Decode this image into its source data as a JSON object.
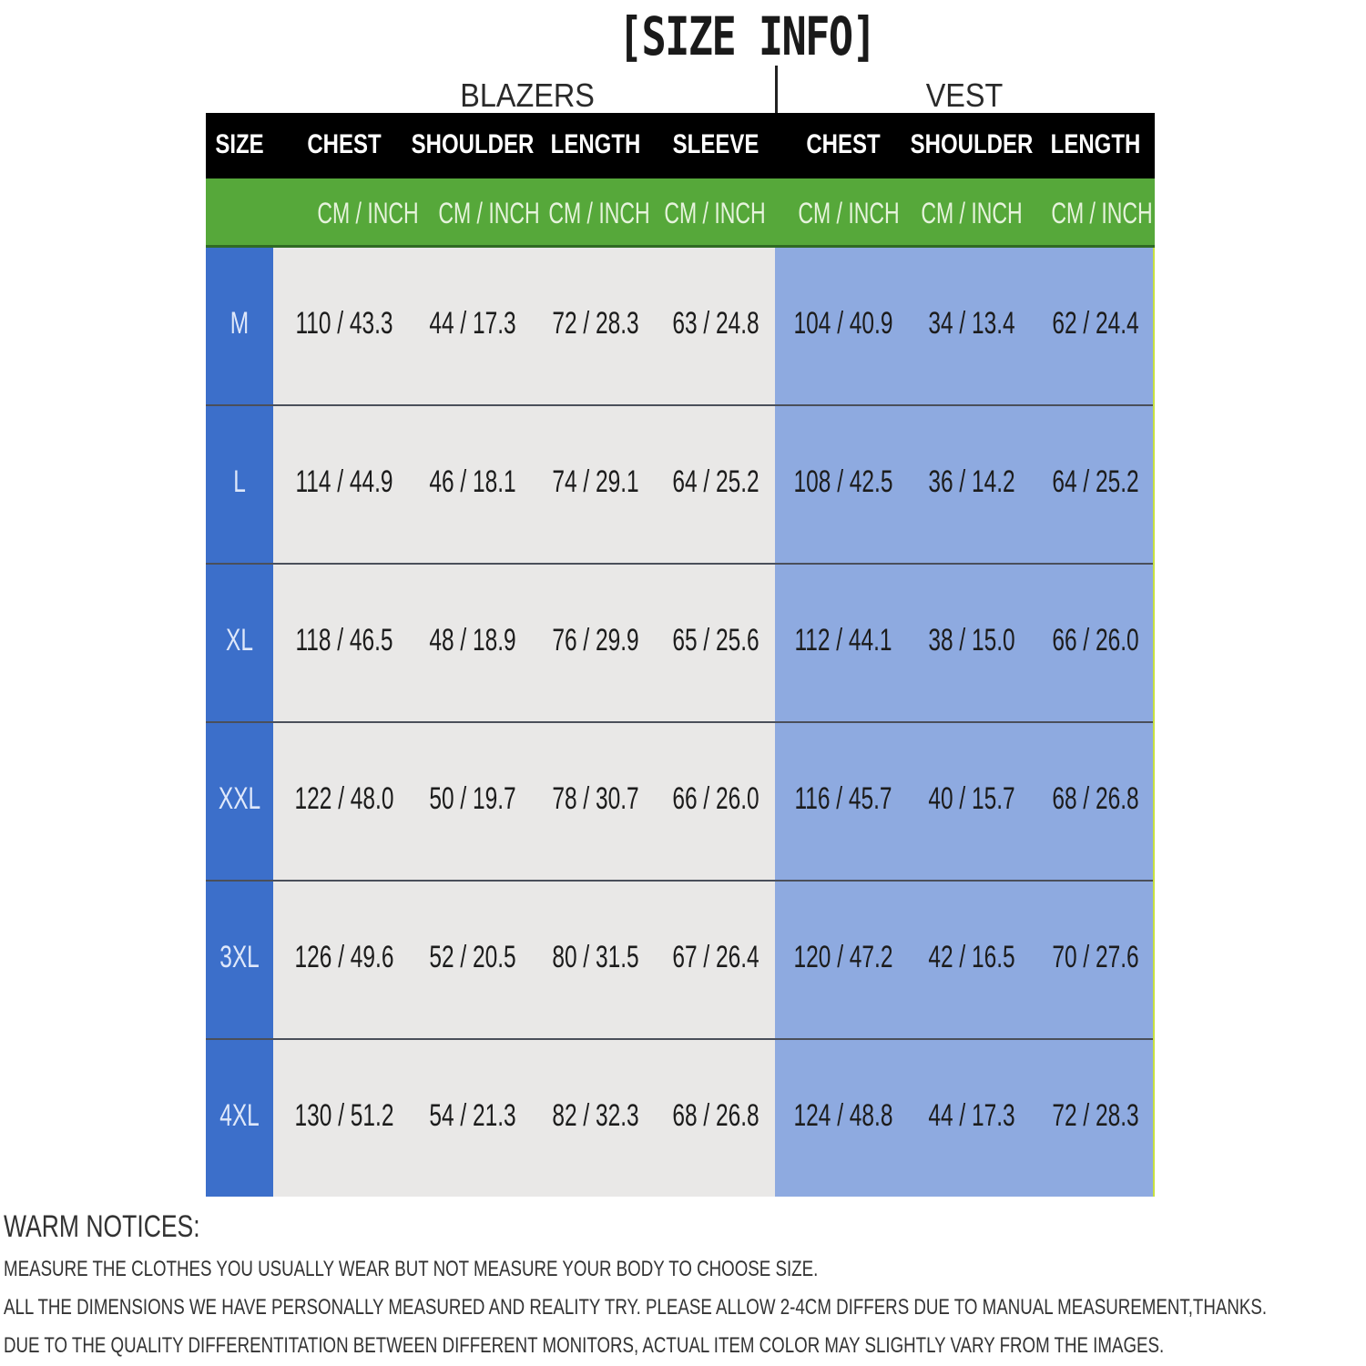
{
  "title": "[SIZE INFO]",
  "groups": {
    "blazers": "BLAZERS",
    "vest": "VEST"
  },
  "headers": [
    "SIZE",
    "CHEST",
    "SHOULDER",
    "LENGTH",
    "SLEEVE",
    "CHEST",
    "SHOULDER",
    "LENGTH"
  ],
  "units": [
    "CM  /  INCH",
    "CM  /  INCH",
    "CM / INCH",
    "CM  /  INCH",
    "CM  /  INCH",
    "CM  /  INCH",
    "CM  /  INCH"
  ],
  "rows": [
    {
      "size": "M",
      "values": [
        "110  /  43.3",
        "44  /  17.3",
        "72 / 28.3",
        "63  /  24.8",
        "104  /  40.9",
        "34  /  13.4",
        "62  /  24.4"
      ]
    },
    {
      "size": "L",
      "values": [
        "114  /  44.9",
        "46  /  18.1",
        "74 / 29.1",
        "64  /  25.2",
        "108  /  42.5",
        "36  /  14.2",
        "64  /  25.2"
      ]
    },
    {
      "size": "XL",
      "values": [
        "118  /  46.5",
        "48  /  18.9",
        "76 / 29.9",
        "65  /  25.6",
        "112  /  44.1",
        "38  /  15.0",
        "66  /  26.0"
      ]
    },
    {
      "size": "XXL",
      "values": [
        "122  /  48.0",
        "50  /  19.7",
        "78 / 30.7",
        "66  /  26.0",
        "116  /  45.7",
        "40  /  15.7",
        "68  /  26.8"
      ]
    },
    {
      "size": "3XL",
      "values": [
        "126  /  49.6",
        "52  /  20.5",
        "80 / 31.5",
        "67  /  26.4",
        "120  /  47.2",
        "42  /  16.5",
        "70  /  27.6"
      ]
    },
    {
      "size": "4XL",
      "values": [
        "130  /  51.2",
        "54  /  21.3",
        "82 / 32.3",
        "68  /  26.8",
        "124  /  48.8",
        "44  /  17.3",
        "72  /  28.3"
      ]
    }
  ],
  "notices": {
    "title": "WARM NOTICES:",
    "lines": [
      "MEASURE THE CLOTHES YOU USUALLY WEAR BUT NOT MEASURE YOUR BODY TO CHOOSE SIZE.",
      "ALL THE DIMENSIONS WE HAVE PERSONALLY MEASURED AND REALITY TRY. PLEASE ALLOW 2-4CM DIFFERS DUE TO MANUAL MEASUREMENT,THANKS.",
      "DUE TO THE QUALITY DIFFERENTITATION BETWEEN DIFFERENT MONITORS, ACTUAL ITEM COLOR MAY SLIGHTLY VARY FROM THE IMAGES."
    ]
  },
  "colors": {
    "header": "#000000",
    "units_row": "#56a83a",
    "size_column": "#3c6fca",
    "blazers_cells": "#e9e8e7",
    "vest_cells": "#8eaae0"
  }
}
